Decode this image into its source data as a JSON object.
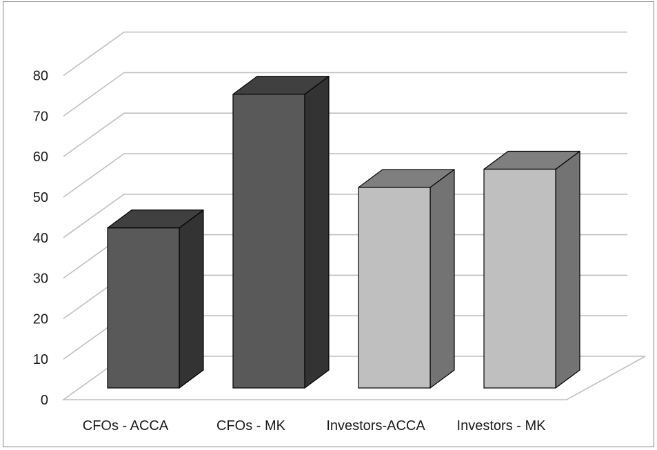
{
  "chart_data": {
    "type": "bar",
    "categories": [
      "CFOs - ACCA",
      "CFOs - MK",
      "Investors-ACCA",
      "Investors - MK"
    ],
    "values": [
      39.5,
      72.5,
      49.5,
      54
    ],
    "ylim": [
      0,
      80
    ],
    "yticks": [
      0,
      10,
      20,
      30,
      40,
      50,
      60,
      70,
      80
    ],
    "ytick_labels": [
      "0",
      "10",
      "20",
      "30",
      "40",
      "50",
      "60",
      "70",
      "80"
    ],
    "grid": true,
    "legend": "none",
    "style": "3d-column",
    "colors": {
      "dark_front": "#595959",
      "dark_top": "#404040",
      "dark_side": "#333333",
      "light_front": "#bfbfbf",
      "light_top": "#7f7f7f",
      "light_side": "#737373",
      "gridline": "#bfbfbf",
      "frame": "#7f7f7f"
    },
    "bar_tones": [
      "dark",
      "dark",
      "light",
      "light"
    ]
  }
}
